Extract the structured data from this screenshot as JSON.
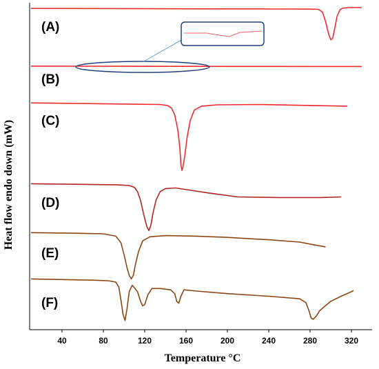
{
  "chart_data": {
    "type": "line",
    "xlabel": "Temperature °C",
    "ylabel": "Heat flow endo down (mW)",
    "x_ticks": [
      40,
      80,
      120,
      160,
      200,
      240,
      280,
      320
    ],
    "xlim": [
      10,
      330
    ],
    "series": [
      {
        "name": "(A)",
        "color": "#ee2a2a",
        "points": [
          [
            10,
            1.6
          ],
          [
            60,
            1.8
          ],
          [
            120,
            2.2
          ],
          [
            180,
            2.5
          ],
          [
            240,
            2.8
          ],
          [
            280,
            3.0
          ],
          [
            288,
            3.4
          ],
          [
            292,
            9
          ],
          [
            295,
            28
          ],
          [
            298,
            53
          ],
          [
            300,
            64
          ],
          [
            302,
            60
          ],
          [
            304,
            40
          ],
          [
            306,
            18
          ],
          [
            309,
            4
          ],
          [
            312,
            1
          ],
          [
            318,
            0
          ],
          [
            330,
            0
          ]
        ]
      },
      {
        "name": "(B)",
        "color": "#ee2a2a",
        "points": [
          [
            10,
            -1
          ],
          [
            60,
            0.2
          ],
          [
            100,
            1.0
          ],
          [
            130,
            1.3
          ],
          [
            160,
            1.5
          ],
          [
            200,
            2.0
          ],
          [
            250,
            2.5
          ],
          [
            300,
            3.0
          ],
          [
            330,
            3.2
          ]
        ]
      },
      {
        "name": "(C)",
        "color": "#ee2a2a",
        "points": [
          [
            10,
            -3
          ],
          [
            60,
            -2
          ],
          [
            110,
            -1
          ],
          [
            135,
            -0.5
          ],
          [
            142,
            1
          ],
          [
            146,
            5
          ],
          [
            149,
            15
          ],
          [
            152,
            38
          ],
          [
            154,
            66
          ],
          [
            155,
            91
          ],
          [
            156,
            100
          ],
          [
            157,
            95
          ],
          [
            159,
            75
          ],
          [
            161,
            50
          ],
          [
            164,
            24
          ],
          [
            168,
            8
          ],
          [
            175,
            2
          ],
          [
            190,
            0
          ],
          [
            230,
            -0.5
          ],
          [
            280,
            1
          ],
          [
            316,
            2
          ]
        ]
      },
      {
        "name": "(D)",
        "color": "#b22222",
        "points": [
          [
            10,
            -3
          ],
          [
            60,
            -2
          ],
          [
            95,
            -1
          ],
          [
            105,
            0
          ],
          [
            110,
            3
          ],
          [
            113,
            10
          ],
          [
            116,
            25
          ],
          [
            119,
            48
          ],
          [
            122,
            68
          ],
          [
            124,
            75
          ],
          [
            126,
            66
          ],
          [
            128,
            46
          ],
          [
            131,
            24
          ],
          [
            135,
            10
          ],
          [
            140,
            5
          ],
          [
            150,
            4
          ],
          [
            165,
            8
          ],
          [
            180,
            12
          ],
          [
            210,
            19
          ],
          [
            250,
            20
          ],
          [
            290,
            20
          ],
          [
            310,
            19
          ]
        ]
      },
      {
        "name": "(E)",
        "color": "#8b4513",
        "points": [
          [
            10,
            -2
          ],
          [
            50,
            -1
          ],
          [
            80,
            0
          ],
          [
            92,
            4
          ],
          [
            97,
            15
          ],
          [
            100,
            35
          ],
          [
            103,
            58
          ],
          [
            105,
            70
          ],
          [
            107,
            76
          ],
          [
            109,
            70
          ],
          [
            111,
            52
          ],
          [
            114,
            30
          ],
          [
            118,
            12
          ],
          [
            125,
            5
          ],
          [
            140,
            3
          ],
          [
            170,
            4
          ],
          [
            200,
            6
          ],
          [
            240,
            10
          ],
          [
            270,
            14
          ],
          [
            285,
            19
          ],
          [
            295,
            22
          ]
        ]
      },
      {
        "name": "(F)",
        "color": "#8b4513",
        "points": [
          [
            10,
            -5
          ],
          [
            40,
            -4
          ],
          [
            70,
            -3
          ],
          [
            85,
            -2
          ],
          [
            92,
            0
          ],
          [
            95,
            8
          ],
          [
            97,
            28
          ],
          [
            99,
            50
          ],
          [
            101,
            60
          ],
          [
            103,
            40
          ],
          [
            105,
            15
          ],
          [
            108,
            5
          ],
          [
            113,
            15
          ],
          [
            116,
            30
          ],
          [
            118,
            37
          ],
          [
            120,
            35
          ],
          [
            123,
            20
          ],
          [
            127,
            10
          ],
          [
            135,
            10
          ],
          [
            145,
            12
          ],
          [
            149,
            18
          ],
          [
            151,
            30
          ],
          [
            153,
            33
          ],
          [
            155,
            22
          ],
          [
            158,
            12
          ],
          [
            170,
            14
          ],
          [
            200,
            18
          ],
          [
            240,
            22
          ],
          [
            270,
            26
          ],
          [
            276,
            32
          ],
          [
            279,
            45
          ],
          [
            281,
            56
          ],
          [
            283,
            58
          ],
          [
            286,
            53
          ],
          [
            289,
            45
          ],
          [
            294,
            38
          ],
          [
            300,
            30
          ],
          [
            310,
            22
          ],
          [
            320,
            15
          ],
          [
            322,
            13
          ]
        ]
      }
    ]
  }
}
